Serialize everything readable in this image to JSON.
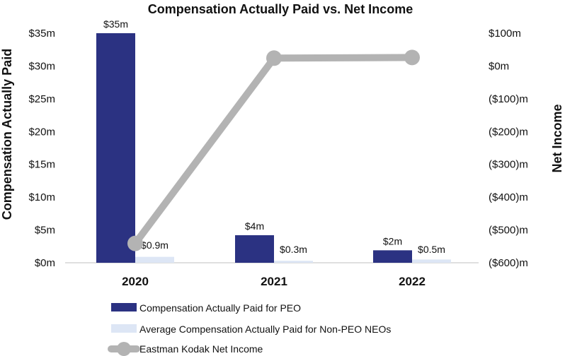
{
  "chart_data": {
    "type": "bar",
    "title": "Compensation Actually Paid vs. Net Income",
    "ylabel": "Compensation Actually Paid",
    "y2label": "Net Income",
    "categories": [
      "2020",
      "2021",
      "2022"
    ],
    "ylim": [
      0,
      35
    ],
    "y_ticks": [
      0,
      5,
      10,
      15,
      20,
      25,
      30,
      35
    ],
    "y_tick_labels": [
      "$0m",
      "$5m",
      "$10m",
      "$15m",
      "$20m",
      "$25m",
      "$30m",
      "$35m"
    ],
    "y2lim": [
      -600,
      100
    ],
    "y2_ticks": [
      -600,
      -500,
      -400,
      -300,
      -200,
      -100,
      0,
      100
    ],
    "y2_tick_labels": [
      "($600)m",
      "($500)m",
      "($400)m",
      "($300)m",
      "($200)m",
      "($100)m",
      "$0m",
      "$100m"
    ],
    "series": [
      {
        "name": "Compensation Actually Paid for PEO",
        "type": "bar",
        "axis": "left",
        "color": "#2b3282",
        "values": [
          35,
          4.2,
          1.9
        ],
        "labels": [
          "$35m",
          "$4m",
          "$2m"
        ]
      },
      {
        "name": "Average Compensation Actually Paid for Non-PEO NEOs",
        "type": "bar",
        "axis": "left",
        "color": "#dde6f5",
        "values": [
          0.9,
          0.3,
          0.5
        ],
        "labels": [
          "$0.9m",
          "$0.3m",
          "$0.5m"
        ]
      },
      {
        "name": "Eastman Kodak Net Income",
        "type": "line",
        "axis": "right",
        "color": "#b3b3b3",
        "values": [
          -541,
          24,
          26
        ]
      }
    ],
    "legend": "bottom",
    "grid": false
  }
}
